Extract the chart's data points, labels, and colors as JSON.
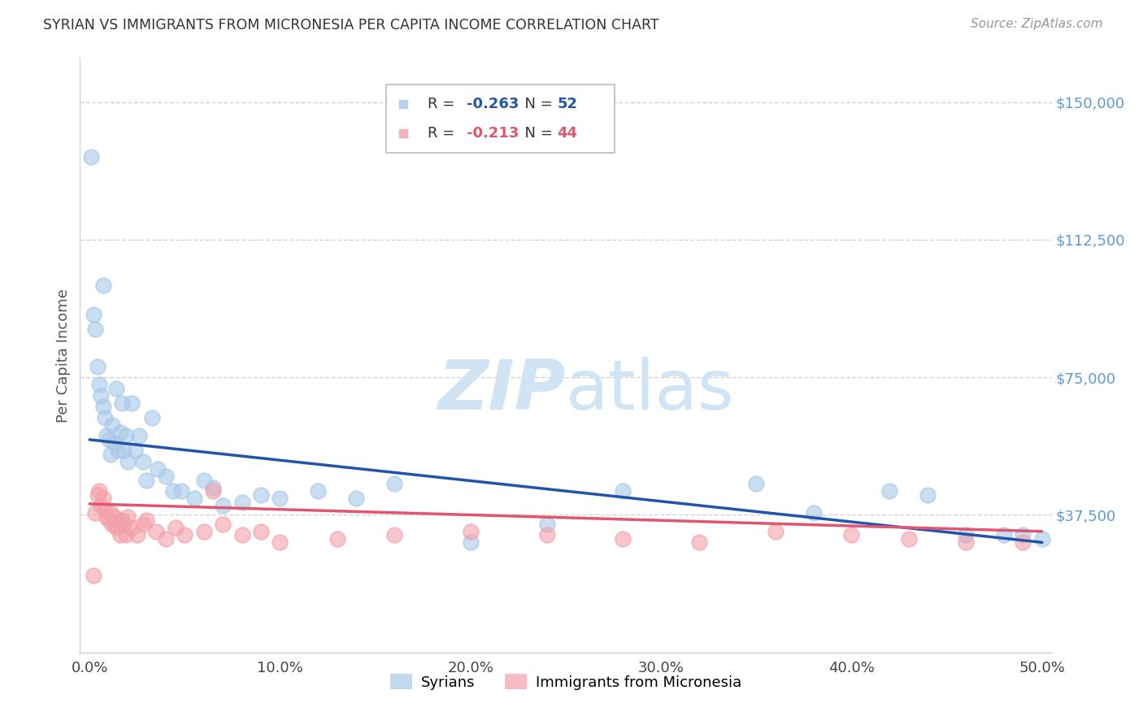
{
  "title": "SYRIAN VS IMMIGRANTS FROM MICRONESIA PER CAPITA INCOME CORRELATION CHART",
  "source": "Source: ZipAtlas.com",
  "ylabel": "Per Capita Income",
  "xlabel_ticks": [
    "0.0%",
    "10.0%",
    "20.0%",
    "30.0%",
    "40.0%",
    "50.0%"
  ],
  "xlabel_vals": [
    0.0,
    0.1,
    0.2,
    0.3,
    0.4,
    0.5
  ],
  "ytick_labels": [
    "$37,500",
    "$75,000",
    "$112,500",
    "$150,000"
  ],
  "ytick_vals": [
    37500,
    75000,
    112500,
    150000
  ],
  "ylim": [
    0,
    162000
  ],
  "xlim": [
    -0.005,
    0.505
  ],
  "background_color": "#ffffff",
  "grid_color": "#c8c8c8",
  "legend_r_blue": "R = -0.263",
  "legend_n_blue": "N = 52",
  "legend_r_pink": "R = -0.213",
  "legend_n_pink": "N = 44",
  "blue_color": "#a8c8e8",
  "pink_color": "#f4a0aa",
  "line_blue": "#2255aa",
  "line_pink": "#e05570",
  "title_color": "#333333",
  "right_tick_color": "#5b9bd5",
  "watermark_color": "#d0e4f4",
  "syrians_x": [
    0.001,
    0.002,
    0.003,
    0.004,
    0.005,
    0.006,
    0.007,
    0.007,
    0.008,
    0.009,
    0.01,
    0.011,
    0.012,
    0.013,
    0.014,
    0.015,
    0.016,
    0.017,
    0.018,
    0.019,
    0.02,
    0.022,
    0.024,
    0.026,
    0.028,
    0.03,
    0.033,
    0.036,
    0.04,
    0.044,
    0.048,
    0.055,
    0.06,
    0.065,
    0.07,
    0.08,
    0.09,
    0.1,
    0.12,
    0.14,
    0.16,
    0.2,
    0.24,
    0.28,
    0.35,
    0.38,
    0.42,
    0.44,
    0.46,
    0.48,
    0.49,
    0.5
  ],
  "syrians_y": [
    135000,
    92000,
    88000,
    78000,
    73000,
    70000,
    100000,
    67000,
    64000,
    59000,
    58000,
    54000,
    62000,
    57000,
    72000,
    55000,
    60000,
    68000,
    55000,
    59000,
    52000,
    68000,
    55000,
    59000,
    52000,
    47000,
    64000,
    50000,
    48000,
    44000,
    44000,
    42000,
    47000,
    45000,
    40000,
    41000,
    43000,
    42000,
    44000,
    42000,
    46000,
    30000,
    35000,
    44000,
    46000,
    38000,
    44000,
    43000,
    32000,
    32000,
    32000,
    31000
  ],
  "micronesia_x": [
    0.002,
    0.003,
    0.004,
    0.005,
    0.006,
    0.007,
    0.008,
    0.009,
    0.01,
    0.011,
    0.012,
    0.013,
    0.014,
    0.015,
    0.016,
    0.017,
    0.018,
    0.019,
    0.02,
    0.022,
    0.025,
    0.028,
    0.03,
    0.035,
    0.04,
    0.045,
    0.05,
    0.06,
    0.065,
    0.07,
    0.08,
    0.09,
    0.1,
    0.13,
    0.16,
    0.2,
    0.24,
    0.28,
    0.32,
    0.36,
    0.4,
    0.43,
    0.46,
    0.49
  ],
  "micronesia_y": [
    21000,
    38000,
    43000,
    44000,
    40000,
    42000,
    39000,
    37000,
    36000,
    38000,
    35000,
    37000,
    34000,
    35000,
    32000,
    36000,
    35000,
    32000,
    37000,
    34000,
    32000,
    35000,
    36000,
    33000,
    31000,
    34000,
    32000,
    33000,
    44000,
    35000,
    32000,
    33000,
    30000,
    31000,
    32000,
    33000,
    32000,
    31000,
    30000,
    33000,
    32000,
    31000,
    30000,
    30000
  ],
  "blue_line_x": [
    0.0,
    0.5
  ],
  "blue_line_y": [
    58000,
    30000
  ],
  "pink_line_x": [
    0.0,
    0.5
  ],
  "pink_line_y": [
    40500,
    33000
  ]
}
